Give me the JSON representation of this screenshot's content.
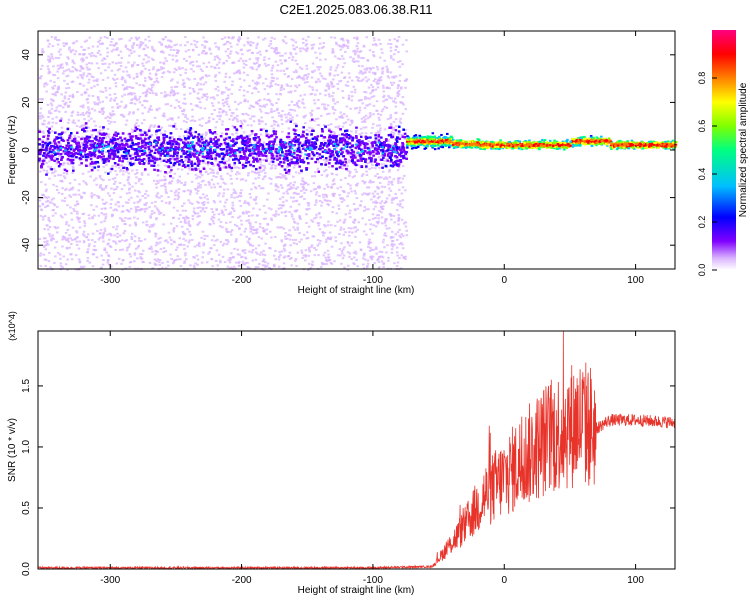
{
  "title": "C2E1.2025.083.06.38.R11",
  "chart_data": [
    {
      "type": "heatmap",
      "title": "C2E1.2025.083.06.38.R11",
      "xlabel": "Height of straight line (km)",
      "ylabel": "Frequency (Hz)",
      "xlim": [
        -355,
        130
      ],
      "ylim": [
        -50,
        50
      ],
      "xticks": [
        -300,
        -200,
        -100,
        0,
        100
      ],
      "xtick_labels": [
        "-300",
        "-200",
        "-100",
        "0",
        "100"
      ],
      "yticks": [
        -40,
        -20,
        0,
        20,
        40
      ],
      "ytick_labels": [
        "-40",
        "-20",
        "0",
        "20",
        "40"
      ],
      "colorbar": {
        "label": "Normalized spectral amplitude",
        "range": [
          0,
          1
        ],
        "ticks": [
          0.0,
          0.2,
          0.4,
          0.6,
          0.8
        ],
        "tick_labels": [
          "0.0",
          "0.2",
          "0.4",
          "0.6",
          "0.8"
        ],
        "colormap": [
          "#ffffff",
          "#d9b3ff",
          "#8000ff",
          "#0000ff",
          "#00c0ff",
          "#00ff80",
          "#80ff00",
          "#ffff00",
          "#ff8000",
          "#ff0000",
          "#ff0080"
        ]
      },
      "regions": [
        {
          "x_range": [
            -355,
            -75
          ],
          "frequency_center": 1,
          "core_halfwidth": 8,
          "spread": [
            -50,
            48
          ],
          "amplitude": [
            0.02,
            0.3
          ]
        },
        {
          "x_range": [
            -75,
            130
          ],
          "frequency_center": 3,
          "core_halfwidth": 2,
          "amplitude": [
            0.5,
            0.95
          ]
        }
      ]
    },
    {
      "type": "line",
      "xlabel": "Height of straight line (km)",
      "ylabel": "SNR (10 * v/v)",
      "y_multiplier": "(x10^4)",
      "xlim": [
        -355,
        130
      ],
      "ylim": [
        0,
        1.95
      ],
      "xticks": [
        -300,
        -200,
        -100,
        0,
        100
      ],
      "xtick_labels": [
        "-300",
        "-200",
        "-100",
        "0",
        "100"
      ],
      "yticks": [
        0.0,
        0.5,
        1.0,
        1.5
      ],
      "ytick_labels": [
        "0.0",
        "0.5",
        "1.0",
        "1.5"
      ],
      "color": "#e8332a",
      "series_envelope": {
        "x": [
          -355,
          -100,
          -55,
          -45,
          -30,
          -15,
          0,
          15,
          30,
          45,
          55,
          60,
          70,
          80,
          100,
          130
        ],
        "y": [
          0.01,
          0.01,
          0.02,
          0.15,
          0.35,
          0.6,
          0.75,
          0.9,
          1.05,
          1.15,
          1.2,
          1.2,
          1.15,
          1.22,
          1.22,
          1.2
        ]
      }
    }
  ]
}
